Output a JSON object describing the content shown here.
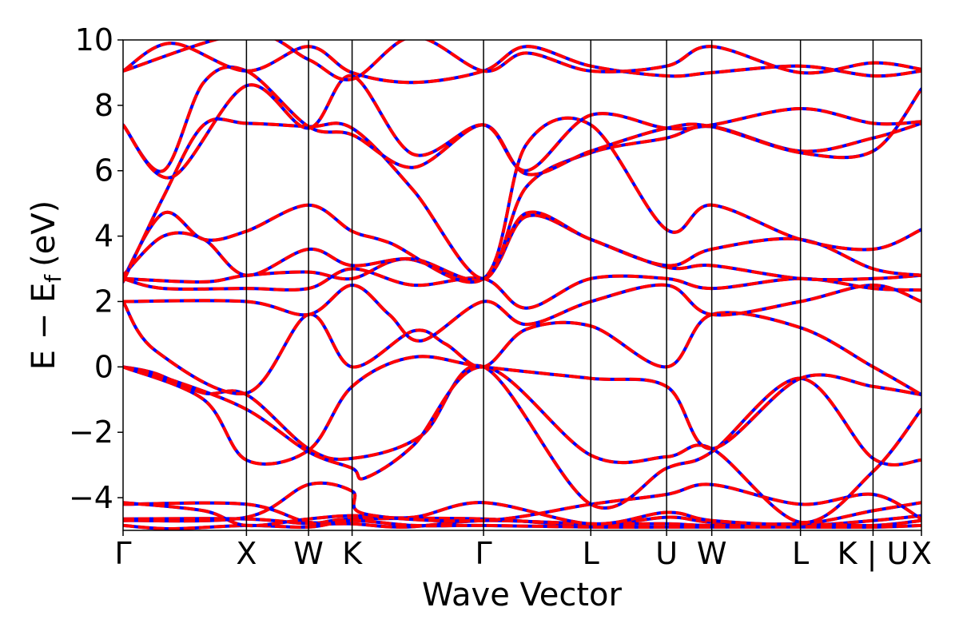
{
  "chart_data": {
    "type": "line",
    "title": "",
    "xlabel": "Wave Vector",
    "ylabel_parts": {
      "main": "E − E",
      "subscript": "f",
      "unit": "(eV)"
    },
    "ylim": [
      -5,
      10
    ],
    "xlim": [
      0,
      9.9
    ],
    "yticks": [
      -4,
      -2,
      0,
      2,
      4,
      6,
      8,
      10
    ],
    "yticklabels": [
      "−4",
      "−2",
      "0",
      "2",
      "4",
      "6",
      "8",
      "10"
    ],
    "kpoints": [
      {
        "label": "Γ",
        "x": 0.0
      },
      {
        "label": "X",
        "x": 1.53
      },
      {
        "label": "W",
        "x": 2.3
      },
      {
        "label": "K",
        "x": 2.84
      },
      {
        "label": "Γ",
        "x": 4.47
      },
      {
        "label": "L",
        "x": 5.8
      },
      {
        "label": "U",
        "x": 6.74
      },
      {
        "label": "W",
        "x": 7.3
      },
      {
        "label": "L",
        "x": 8.4
      },
      {
        "label": "K | U",
        "x": 9.3
      },
      {
        "label": "X",
        "x": 9.9
      }
    ],
    "grid": false,
    "legend": "none",
    "series_styles": [
      {
        "color": "#0000ff",
        "style": "solid"
      },
      {
        "color": "#ff0000",
        "style": "dashed"
      }
    ],
    "bands": [
      [
        [
          0,
          -4.2
        ],
        [
          1.53,
          -4.2
        ],
        [
          2.3,
          -4.75
        ],
        [
          2.84,
          -4.65
        ],
        [
          4.47,
          -4.65
        ],
        [
          5.8,
          -4.85
        ],
        [
          6.74,
          -4.6
        ],
        [
          7.3,
          -4.75
        ],
        [
          8.4,
          -4.85
        ],
        [
          9.3,
          -4.7
        ],
        [
          9.9,
          -4.55
        ]
      ],
      [
        [
          0,
          -4.65
        ],
        [
          1.53,
          -4.65
        ],
        [
          2.3,
          -4.8
        ],
        [
          2.84,
          -4.8
        ],
        [
          3.5,
          -4.9
        ],
        [
          4.47,
          -4.7
        ],
        [
          5.8,
          -4.8
        ],
        [
          6.74,
          -4.8
        ],
        [
          7.3,
          -4.85
        ],
        [
          8.4,
          -4.8
        ],
        [
          9.3,
          -4.85
        ],
        [
          9.9,
          -4.7
        ]
      ],
      [
        [
          0,
          -4.85
        ],
        [
          0.6,
          -4.95
        ],
        [
          1.53,
          -4.85
        ],
        [
          2.3,
          -4.9
        ],
        [
          2.84,
          -4.7
        ],
        [
          3.6,
          -4.85
        ],
        [
          4.47,
          -4.85
        ],
        [
          5.8,
          -4.9
        ],
        [
          6.74,
          -4.9
        ],
        [
          7.3,
          -4.9
        ],
        [
          8.4,
          -4.9
        ],
        [
          9.3,
          -4.9
        ],
        [
          9.9,
          -4.85
        ]
      ],
      [
        [
          0,
          -4.15
        ],
        [
          1.0,
          -4.4
        ],
        [
          1.53,
          -4.85
        ],
        [
          2.3,
          -4.65
        ],
        [
          2.84,
          -4.55
        ],
        [
          3.6,
          -4.6
        ],
        [
          4.47,
          -4.15
        ],
        [
          5.8,
          -4.8
        ],
        [
          6.74,
          -4.45
        ],
        [
          7.3,
          -4.7
        ],
        [
          8.4,
          -4.8
        ],
        [
          9.3,
          -4.4
        ],
        [
          9.9,
          -4.15
        ]
      ],
      [
        [
          0,
          -4.7
        ],
        [
          1.53,
          -4.6
        ],
        [
          2.3,
          -3.6
        ],
        [
          2.84,
          -3.8
        ],
        [
          3.0,
          -4.5
        ],
        [
          4.47,
          -4.7
        ],
        [
          5.8,
          -4.2
        ],
        [
          6.74,
          -3.9
        ],
        [
          7.3,
          -3.6
        ],
        [
          8.4,
          -4.2
        ],
        [
          9.3,
          -3.9
        ],
        [
          9.9,
          -4.65
        ]
      ],
      [
        [
          0,
          0.0
        ],
        [
          0.4,
          -0.2
        ],
        [
          1.0,
          -0.8
        ],
        [
          1.53,
          -0.85
        ],
        [
          2.3,
          -2.5
        ],
        [
          2.84,
          -2.8
        ],
        [
          3.7,
          -2.1
        ],
        [
          4.47,
          0.0
        ],
        [
          5.8,
          -4.2
        ],
        [
          6.74,
          -3.1
        ],
        [
          7.3,
          -2.6
        ],
        [
          8.4,
          -0.35
        ],
        [
          9.3,
          -2.8
        ],
        [
          9.9,
          -2.85
        ]
      ],
      [
        [
          0,
          0.0
        ],
        [
          0.6,
          -0.4
        ],
        [
          1.53,
          -1.3
        ],
        [
          2.3,
          -2.6
        ],
        [
          2.84,
          -3.1
        ],
        [
          3.0,
          -3.4
        ],
        [
          3.6,
          -2.4
        ],
        [
          4.47,
          0.0
        ],
        [
          5.8,
          -2.7
        ],
        [
          6.74,
          -2.75
        ],
        [
          7.3,
          -2.5
        ],
        [
          8.4,
          -4.75
        ],
        [
          9.3,
          -3.2
        ],
        [
          9.9,
          -1.3
        ]
      ],
      [
        [
          0,
          0.0
        ],
        [
          1.0,
          -1.0
        ],
        [
          1.53,
          -2.85
        ],
        [
          2.3,
          -2.55
        ],
        [
          2.84,
          -0.6
        ],
        [
          3.6,
          0.3
        ],
        [
          4.47,
          0.0
        ],
        [
          5.8,
          -0.35
        ],
        [
          6.74,
          -0.6
        ],
        [
          7.3,
          -2.5
        ],
        [
          8.4,
          -0.35
        ],
        [
          9.3,
          -0.6
        ],
        [
          9.9,
          -0.85
        ]
      ],
      [
        [
          0,
          2.0
        ],
        [
          0.4,
          0.5
        ],
        [
          1.53,
          -0.8
        ],
        [
          2.3,
          1.6
        ],
        [
          2.84,
          0.0
        ],
        [
          3.6,
          1.1
        ],
        [
          4.0,
          0.7
        ],
        [
          4.47,
          0.0
        ],
        [
          5.0,
          1.15
        ],
        [
          5.8,
          1.25
        ],
        [
          6.74,
          0.0
        ],
        [
          7.3,
          1.6
        ],
        [
          8.4,
          1.2
        ],
        [
          9.3,
          0.0
        ],
        [
          9.9,
          -0.85
        ]
      ],
      [
        [
          0,
          2.0
        ],
        [
          1.53,
          2.0
        ],
        [
          2.3,
          1.6
        ],
        [
          2.84,
          2.5
        ],
        [
          3.3,
          1.6
        ],
        [
          3.7,
          0.8
        ],
        [
          4.47,
          2.0
        ],
        [
          5.0,
          1.3
        ],
        [
          5.8,
          2.0
        ],
        [
          6.74,
          2.5
        ],
        [
          7.3,
          1.6
        ],
        [
          8.4,
          2.0
        ],
        [
          9.3,
          2.5
        ],
        [
          9.9,
          2.0
        ]
      ],
      [
        [
          0,
          2.7
        ],
        [
          0.5,
          2.4
        ],
        [
          1.53,
          2.4
        ],
        [
          2.3,
          2.4
        ],
        [
          2.84,
          3.0
        ],
        [
          3.6,
          2.5
        ],
        [
          4.47,
          2.7
        ],
        [
          5.0,
          1.8
        ],
        [
          5.8,
          2.7
        ],
        [
          6.74,
          2.7
        ],
        [
          7.3,
          2.4
        ],
        [
          8.4,
          2.7
        ],
        [
          9.3,
          2.4
        ],
        [
          9.9,
          2.35
        ]
      ],
      [
        [
          0,
          2.7
        ],
        [
          1.0,
          2.6
        ],
        [
          1.53,
          2.8
        ],
        [
          2.3,
          2.9
        ],
        [
          2.84,
          2.7
        ],
        [
          3.5,
          3.3
        ],
        [
          4.47,
          2.7
        ],
        [
          5.0,
          4.6
        ],
        [
          5.8,
          3.9
        ],
        [
          6.74,
          3.05
        ],
        [
          7.3,
          3.1
        ],
        [
          8.4,
          2.7
        ],
        [
          9.3,
          2.7
        ],
        [
          9.9,
          2.8
        ]
      ],
      [
        [
          0,
          2.8
        ],
        [
          0.5,
          4.0
        ],
        [
          1.0,
          3.9
        ],
        [
          1.53,
          2.8
        ],
        [
          2.3,
          3.6
        ],
        [
          2.84,
          3.1
        ],
        [
          3.6,
          3.3
        ],
        [
          4.47,
          2.7
        ],
        [
          5.0,
          4.7
        ],
        [
          5.8,
          3.9
        ],
        [
          6.74,
          3.1
        ],
        [
          7.3,
          3.6
        ],
        [
          8.4,
          3.9
        ],
        [
          9.3,
          3.0
        ],
        [
          9.9,
          2.8
        ]
      ],
      [
        [
          0,
          2.7
        ],
        [
          0.5,
          4.7
        ],
        [
          1.0,
          3.9
        ],
        [
          1.53,
          4.15
        ],
        [
          2.3,
          4.95
        ],
        [
          2.84,
          4.15
        ],
        [
          3.3,
          3.8
        ],
        [
          4.47,
          2.7
        ],
        [
          5.0,
          6.8
        ],
        [
          5.8,
          7.4
        ],
        [
          6.74,
          4.2
        ],
        [
          7.3,
          4.95
        ],
        [
          8.4,
          3.9
        ],
        [
          9.3,
          3.6
        ],
        [
          9.9,
          4.2
        ]
      ],
      [
        [
          0,
          2.6
        ],
        [
          0.5,
          5.2
        ],
        [
          1.0,
          7.4
        ],
        [
          1.53,
          7.45
        ],
        [
          2.3,
          7.35
        ],
        [
          2.84,
          7.3
        ],
        [
          3.6,
          5.4
        ],
        [
          4.47,
          2.7
        ],
        [
          5.0,
          5.5
        ],
        [
          5.8,
          6.55
        ],
        [
          6.74,
          7.0
        ],
        [
          7.3,
          7.35
        ],
        [
          8.4,
          6.6
        ],
        [
          9.3,
          7.0
        ],
        [
          9.9,
          7.45
        ]
      ],
      [
        [
          0,
          7.4
        ],
        [
          0.5,
          6.0
        ],
        [
          1.0,
          8.7
        ],
        [
          1.53,
          9.05
        ],
        [
          2.3,
          7.35
        ],
        [
          2.84,
          7.1
        ],
        [
          3.6,
          6.1
        ],
        [
          4.47,
          7.4
        ],
        [
          5.0,
          5.9
        ],
        [
          5.8,
          6.6
        ],
        [
          6.74,
          7.3
        ],
        [
          7.3,
          7.35
        ],
        [
          8.4,
          6.55
        ],
        [
          9.3,
          6.6
        ],
        [
          9.9,
          8.5
        ]
      ],
      [
        [
          0,
          7.4
        ],
        [
          0.6,
          5.8
        ],
        [
          1.53,
          8.6
        ],
        [
          2.3,
          7.3
        ],
        [
          2.84,
          8.9
        ],
        [
          3.6,
          6.5
        ],
        [
          4.47,
          7.4
        ],
        [
          5.0,
          6.0
        ],
        [
          5.8,
          7.7
        ],
        [
          6.74,
          7.3
        ],
        [
          7.3,
          7.4
        ],
        [
          8.4,
          7.9
        ],
        [
          9.3,
          7.45
        ],
        [
          9.9,
          7.5
        ]
      ],
      [
        [
          0,
          9.05
        ],
        [
          0.6,
          9.9
        ],
        [
          1.53,
          9.05
        ],
        [
          2.3,
          9.8
        ],
        [
          2.84,
          9.0
        ],
        [
          3.6,
          8.7
        ],
        [
          4.47,
          9.05
        ],
        [
          5.0,
          9.8
        ],
        [
          5.8,
          9.2
        ],
        [
          6.74,
          8.9
        ],
        [
          7.3,
          9.0
        ],
        [
          8.4,
          9.2
        ],
        [
          9.3,
          8.9
        ],
        [
          9.9,
          9.05
        ]
      ],
      [
        [
          0,
          9.05
        ],
        [
          1.53,
          10.2
        ],
        [
          2.3,
          9.4
        ],
        [
          2.84,
          8.8
        ],
        [
          3.6,
          10.1
        ],
        [
          4.47,
          9.05
        ],
        [
          5.0,
          9.6
        ],
        [
          5.8,
          9.05
        ],
        [
          6.74,
          9.2
        ],
        [
          7.3,
          9.8
        ],
        [
          8.4,
          9.0
        ],
        [
          9.3,
          9.3
        ],
        [
          9.9,
          9.1
        ]
      ]
    ]
  }
}
